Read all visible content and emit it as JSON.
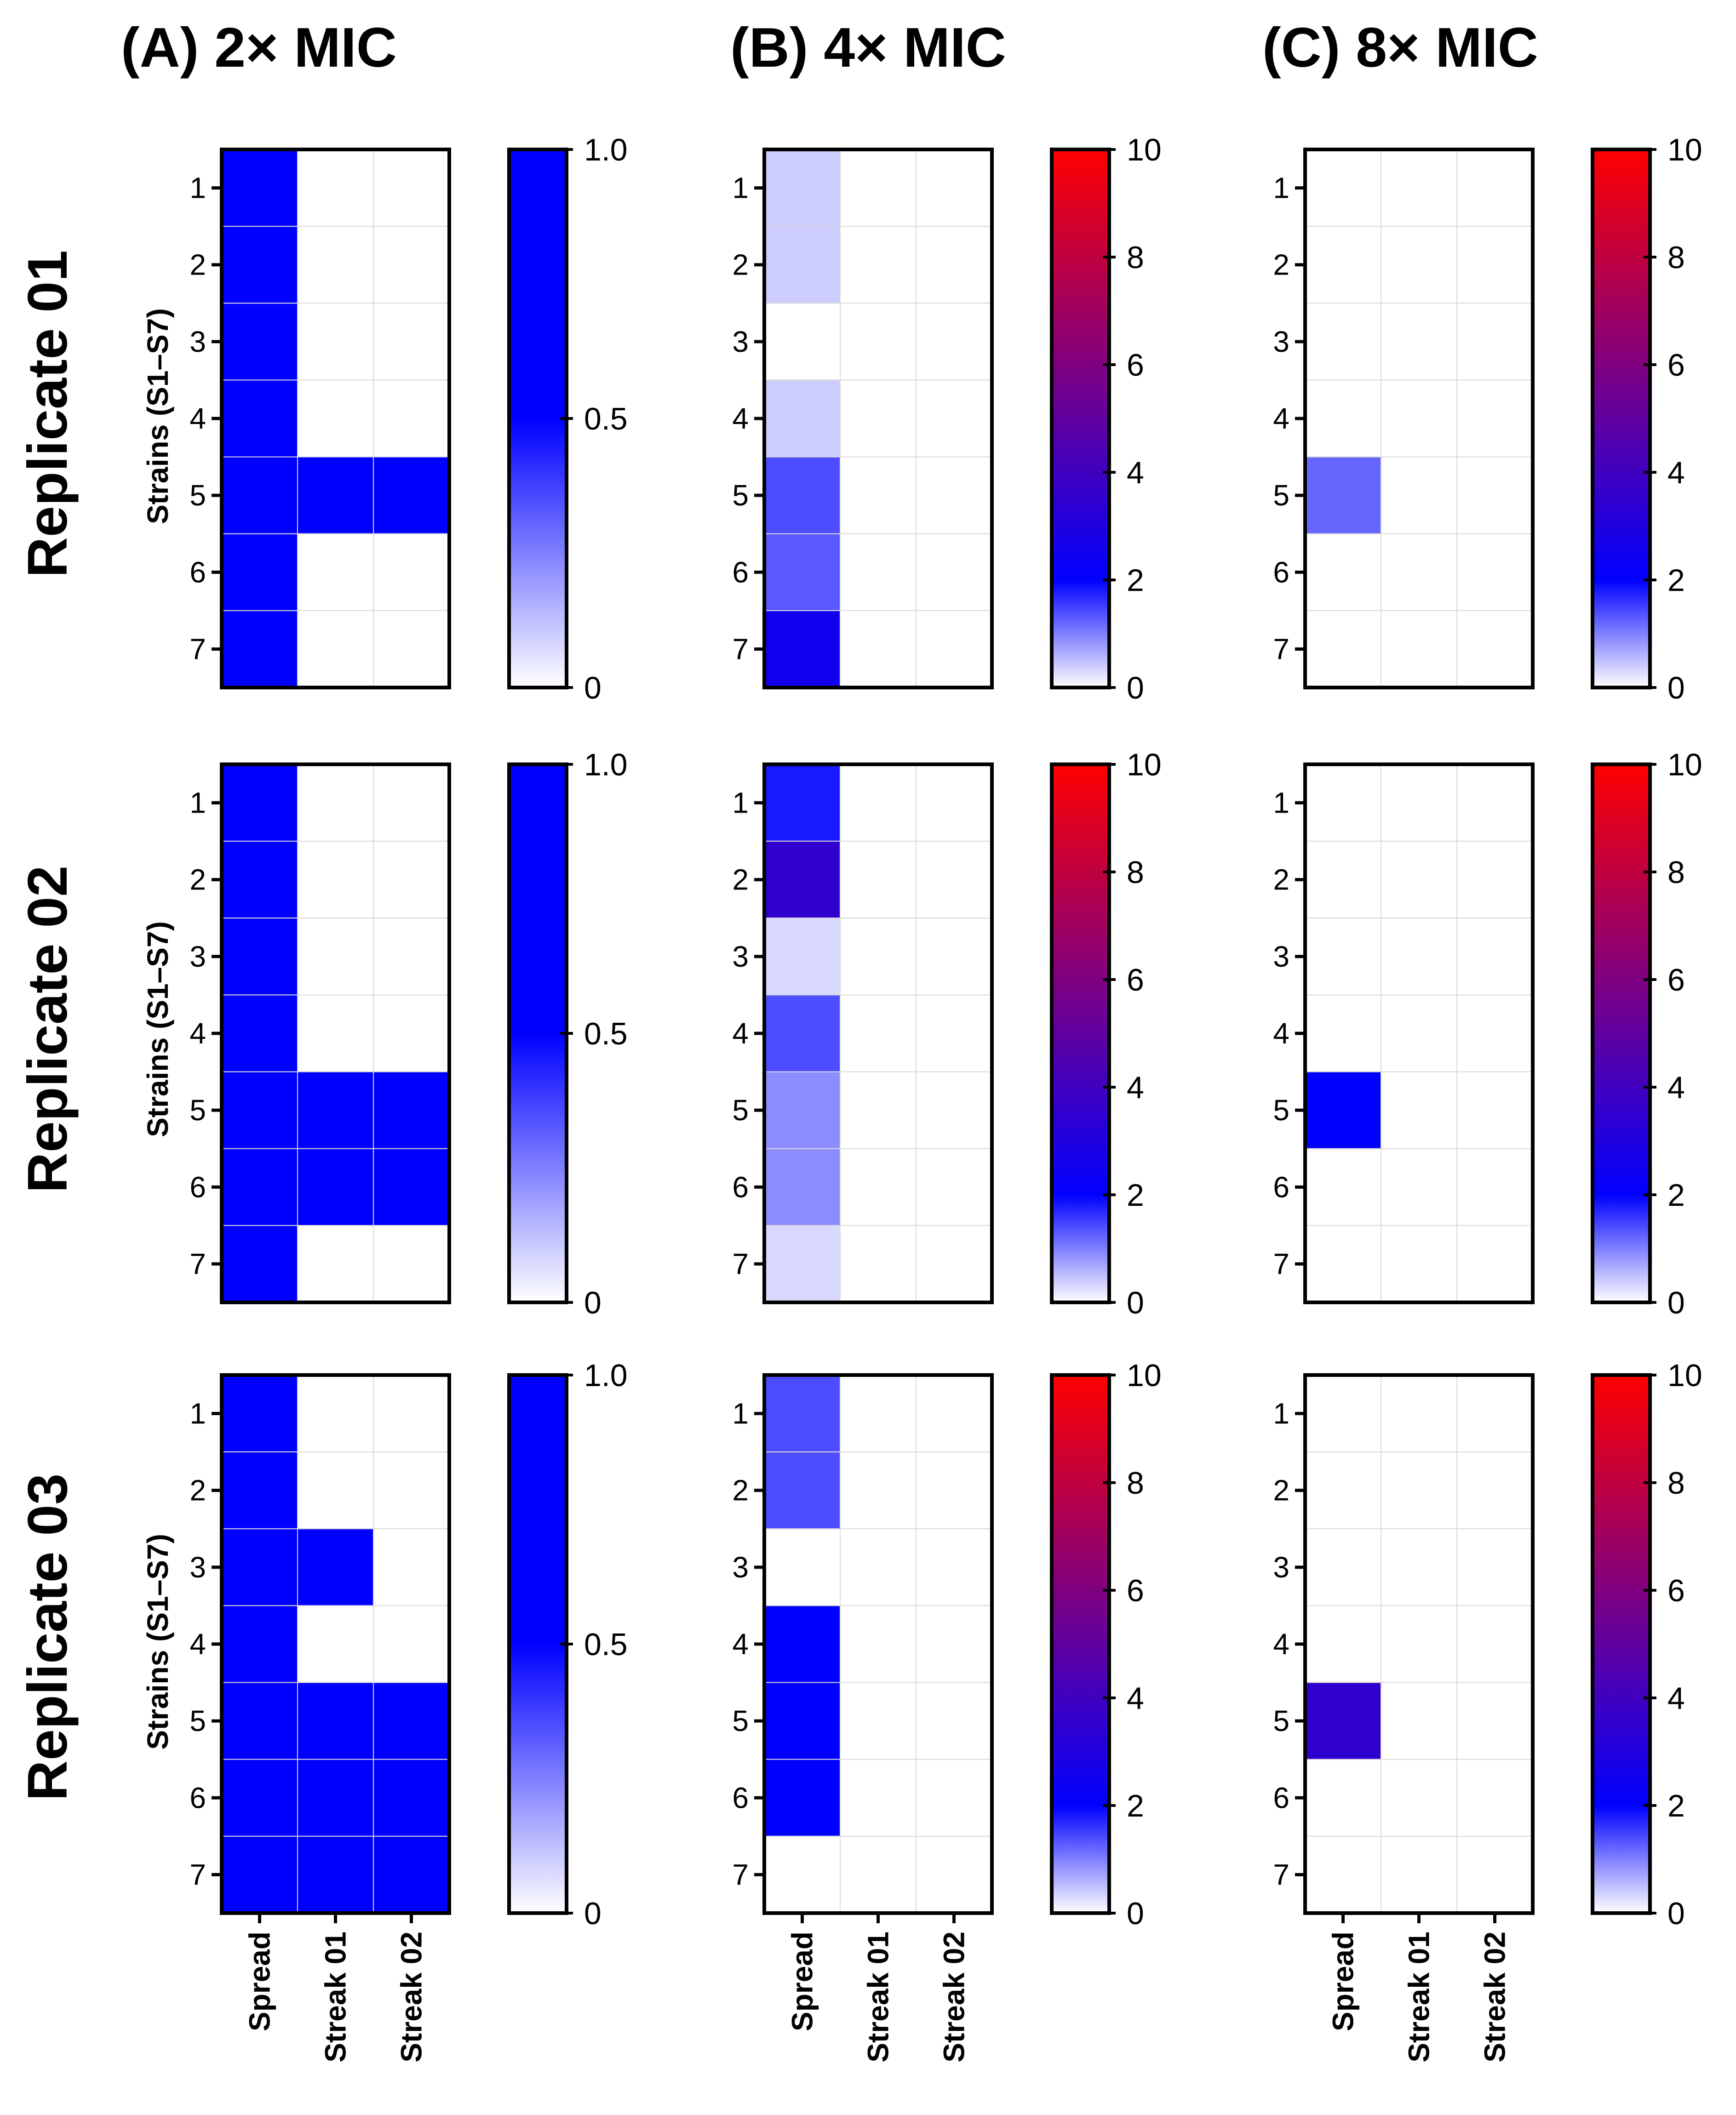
{
  "column_titles": [
    "(A) 2× MIC",
    "(B) 4× MIC",
    "(C) 8× MIC"
  ],
  "row_titles": [
    "Replicate 01",
    "Replicate 02",
    "Replicate 03"
  ],
  "y_axis_label": "Strains (S1–S7)",
  "colors": {
    "low": "#ffffff",
    "mid": "#0000ff",
    "high": "#ff0000",
    "grid": "#d9d9d9",
    "frame": "#000000"
  },
  "chart_data": [
    {
      "type": "heatmap",
      "column": "(A) 2× MIC",
      "replicate": "Replicate 01",
      "rows": [
        "1",
        "2",
        "3",
        "4",
        "5",
        "6",
        "7"
      ],
      "columns": [
        "Spread",
        "Streak 01",
        "Streak 02"
      ],
      "values": [
        [
          1,
          0,
          0
        ],
        [
          1,
          0,
          0
        ],
        [
          1,
          0,
          0
        ],
        [
          1,
          0,
          0
        ],
        [
          1,
          1,
          1
        ],
        [
          1,
          0,
          0
        ],
        [
          1,
          0,
          0
        ]
      ],
      "colorbar": {
        "min": 0,
        "max": 1.0,
        "ticks": [
          "0",
          "0.5",
          "1.0"
        ],
        "colors": [
          "#ffffff",
          "#0000ff",
          "#0000ff"
        ]
      }
    },
    {
      "type": "heatmap",
      "column": "(B) 4× MIC",
      "replicate": "Replicate 01",
      "rows": [
        "1",
        "2",
        "3",
        "4",
        "5",
        "6",
        "7"
      ],
      "columns": [
        "Spread",
        "Streak 01",
        "Streak 02"
      ],
      "values": [
        [
          0.4,
          0,
          0
        ],
        [
          0.4,
          0,
          0
        ],
        [
          0,
          0,
          0
        ],
        [
          0.4,
          0,
          0
        ],
        [
          1.4,
          0,
          0
        ],
        [
          1.3,
          0,
          0
        ],
        [
          2.5,
          0,
          0
        ]
      ],
      "colorbar": {
        "min": 0,
        "max": 10,
        "ticks": [
          "0",
          "2",
          "4",
          "6",
          "8",
          "10"
        ],
        "colors": [
          "#ffffff",
          "#0000ff",
          "#ff0000"
        ]
      }
    },
    {
      "type": "heatmap",
      "column": "(C) 8× MIC",
      "replicate": "Replicate 01",
      "rows": [
        "1",
        "2",
        "3",
        "4",
        "5",
        "6",
        "7"
      ],
      "columns": [
        "Spread",
        "Streak 01",
        "Streak 02"
      ],
      "values": [
        [
          0,
          0,
          0
        ],
        [
          0,
          0,
          0
        ],
        [
          0,
          0,
          0
        ],
        [
          0,
          0,
          0
        ],
        [
          1.2,
          0,
          0
        ],
        [
          0,
          0,
          0
        ],
        [
          0,
          0,
          0
        ]
      ],
      "colorbar": {
        "min": 0,
        "max": 10,
        "ticks": [
          "0",
          "2",
          "4",
          "6",
          "8",
          "10"
        ],
        "colors": [
          "#ffffff",
          "#0000ff",
          "#ff0000"
        ]
      }
    },
    {
      "type": "heatmap",
      "column": "(A) 2× MIC",
      "replicate": "Replicate 02",
      "rows": [
        "1",
        "2",
        "3",
        "4",
        "5",
        "6",
        "7"
      ],
      "columns": [
        "Spread",
        "Streak 01",
        "Streak 02"
      ],
      "values": [
        [
          1,
          0,
          0
        ],
        [
          1,
          0,
          0
        ],
        [
          1,
          0,
          0
        ],
        [
          1,
          0,
          0
        ],
        [
          1,
          1,
          1
        ],
        [
          1,
          1,
          1
        ],
        [
          1,
          0,
          0
        ]
      ],
      "colorbar": {
        "min": 0,
        "max": 1.0,
        "ticks": [
          "0",
          "0.5",
          "1.0"
        ],
        "colors": [
          "#ffffff",
          "#0000ff",
          "#0000ff"
        ]
      }
    },
    {
      "type": "heatmap",
      "column": "(B) 4× MIC",
      "replicate": "Replicate 02",
      "rows": [
        "1",
        "2",
        "3",
        "4",
        "5",
        "6",
        "7"
      ],
      "columns": [
        "Spread",
        "Streak 01",
        "Streak 02"
      ],
      "values": [
        [
          1.8,
          0,
          0
        ],
        [
          3.5,
          0,
          0
        ],
        [
          0.3,
          0,
          0
        ],
        [
          1.4,
          0,
          0
        ],
        [
          0.9,
          0,
          0
        ],
        [
          0.9,
          0,
          0
        ],
        [
          0.3,
          0,
          0
        ]
      ],
      "colorbar": {
        "min": 0,
        "max": 10,
        "ticks": [
          "0",
          "2",
          "4",
          "6",
          "8",
          "10"
        ],
        "colors": [
          "#ffffff",
          "#0000ff",
          "#ff0000"
        ]
      }
    },
    {
      "type": "heatmap",
      "column": "(C) 8× MIC",
      "replicate": "Replicate 02",
      "rows": [
        "1",
        "2",
        "3",
        "4",
        "5",
        "6",
        "7"
      ],
      "columns": [
        "Spread",
        "Streak 01",
        "Streak 02"
      ],
      "values": [
        [
          0,
          0,
          0
        ],
        [
          0,
          0,
          0
        ],
        [
          0,
          0,
          0
        ],
        [
          0,
          0,
          0
        ],
        [
          2,
          0,
          0
        ],
        [
          0,
          0,
          0
        ],
        [
          0,
          0,
          0
        ]
      ],
      "colorbar": {
        "min": 0,
        "max": 10,
        "ticks": [
          "0",
          "2",
          "4",
          "6",
          "8",
          "10"
        ],
        "colors": [
          "#ffffff",
          "#0000ff",
          "#ff0000"
        ]
      }
    },
    {
      "type": "heatmap",
      "column": "(A) 2× MIC",
      "replicate": "Replicate 03",
      "rows": [
        "1",
        "2",
        "3",
        "4",
        "5",
        "6",
        "7"
      ],
      "columns": [
        "Spread",
        "Streak 01",
        "Streak 02"
      ],
      "values": [
        [
          1,
          0,
          0
        ],
        [
          1,
          0,
          0
        ],
        [
          1,
          0.7,
          0
        ],
        [
          1,
          0,
          0
        ],
        [
          1,
          1,
          1
        ],
        [
          1,
          1,
          1
        ],
        [
          1,
          1,
          1
        ]
      ],
      "colorbar": {
        "min": 0,
        "max": 1.0,
        "ticks": [
          "0",
          "0.5",
          "1.0"
        ],
        "colors": [
          "#ffffff",
          "#0000ff",
          "#0000ff"
        ]
      }
    },
    {
      "type": "heatmap",
      "column": "(B) 4× MIC",
      "replicate": "Replicate 03",
      "rows": [
        "1",
        "2",
        "3",
        "4",
        "5",
        "6",
        "7"
      ],
      "columns": [
        "Spread",
        "Streak 01",
        "Streak 02"
      ],
      "values": [
        [
          1.4,
          0,
          0
        ],
        [
          1.4,
          0,
          0
        ],
        [
          0,
          0,
          0
        ],
        [
          2,
          0,
          0
        ],
        [
          2,
          0,
          0
        ],
        [
          2,
          0,
          0
        ],
        [
          0,
          0,
          0
        ]
      ],
      "colorbar": {
        "min": 0,
        "max": 10,
        "ticks": [
          "0",
          "2",
          "4",
          "6",
          "8",
          "10"
        ],
        "colors": [
          "#ffffff",
          "#0000ff",
          "#ff0000"
        ]
      }
    },
    {
      "type": "heatmap",
      "column": "(C) 8× MIC",
      "replicate": "Replicate 03",
      "rows": [
        "1",
        "2",
        "3",
        "4",
        "5",
        "6",
        "7"
      ],
      "columns": [
        "Spread",
        "Streak 01",
        "Streak 02"
      ],
      "values": [
        [
          0,
          0,
          0
        ],
        [
          0,
          0,
          0
        ],
        [
          0,
          0,
          0
        ],
        [
          0,
          0,
          0
        ],
        [
          3.5,
          0,
          0
        ],
        [
          0,
          0,
          0
        ],
        [
          0,
          0,
          0
        ]
      ],
      "colorbar": {
        "min": 0,
        "max": 10,
        "ticks": [
          "0",
          "2",
          "4",
          "6",
          "8",
          "10"
        ],
        "colors": [
          "#ffffff",
          "#0000ff",
          "#ff0000"
        ]
      }
    }
  ]
}
